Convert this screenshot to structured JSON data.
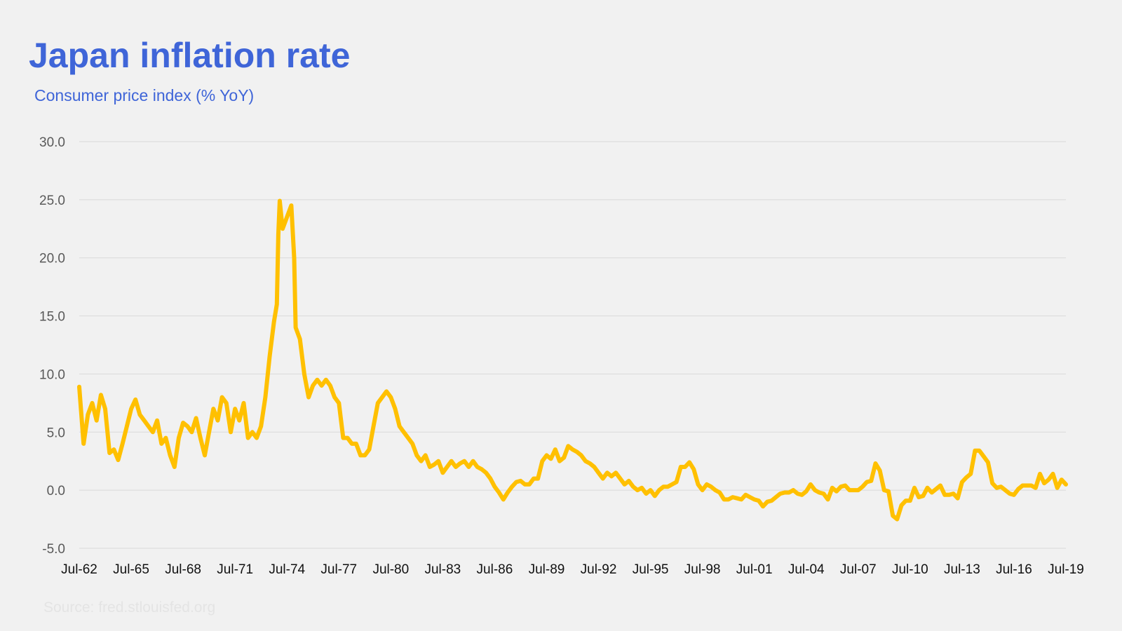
{
  "title": "Japan inflation rate",
  "subtitle": "Consumer price index (% YoY)",
  "source": "Source: fred.stlouisfed.org",
  "colors": {
    "title": "#3f65d8",
    "line": "#ffc000",
    "grid": "#d9d9d9",
    "background": "#f1f1f1"
  },
  "chart_data": {
    "type": "line",
    "title": "Japan inflation rate",
    "subtitle": "Consumer price index (% YoY)",
    "ylabel": "",
    "xlabel": "",
    "ylim": [
      -5,
      30
    ],
    "y_ticks": [
      "-5.0",
      "0.0",
      "5.0",
      "10.0",
      "15.0",
      "20.0",
      "25.0",
      "30.0"
    ],
    "x_ticks": [
      "Jul-62",
      "Jul-65",
      "Jul-68",
      "Jul-71",
      "Jul-74",
      "Jul-77",
      "Jul-80",
      "Jul-83",
      "Jul-86",
      "Jul-89",
      "Jul-92",
      "Jul-95",
      "Jul-98",
      "Jul-01",
      "Jul-04",
      "Jul-07",
      "Jul-10",
      "Jul-13",
      "Jul-16",
      "Jul-19"
    ],
    "grid": true,
    "legend": "none",
    "series": [
      {
        "color": "#ffc000",
        "points": [
          [
            "1962-07",
            8.9
          ],
          [
            "1962-10",
            4.0
          ],
          [
            "1963-01",
            6.5
          ],
          [
            "1963-04",
            7.5
          ],
          [
            "1963-07",
            6.0
          ],
          [
            "1963-10",
            8.2
          ],
          [
            "1964-01",
            7.0
          ],
          [
            "1964-04",
            3.2
          ],
          [
            "1964-07",
            3.5
          ],
          [
            "1964-10",
            2.6
          ],
          [
            "1965-01",
            4.0
          ],
          [
            "1965-04",
            5.5
          ],
          [
            "1965-07",
            7.0
          ],
          [
            "1965-10",
            7.8
          ],
          [
            "1966-01",
            6.5
          ],
          [
            "1966-04",
            6.0
          ],
          [
            "1966-07",
            5.5
          ],
          [
            "1966-10",
            5.0
          ],
          [
            "1967-01",
            6.0
          ],
          [
            "1967-04",
            4.0
          ],
          [
            "1967-07",
            4.5
          ],
          [
            "1967-10",
            3.0
          ],
          [
            "1968-01",
            2.0
          ],
          [
            "1968-04",
            4.5
          ],
          [
            "1968-07",
            5.8
          ],
          [
            "1968-10",
            5.5
          ],
          [
            "1969-01",
            5.0
          ],
          [
            "1969-04",
            6.2
          ],
          [
            "1969-07",
            4.5
          ],
          [
            "1969-10",
            3.0
          ],
          [
            "1970-01",
            5.0
          ],
          [
            "1970-04",
            7.0
          ],
          [
            "1970-07",
            6.0
          ],
          [
            "1970-10",
            8.0
          ],
          [
            "1971-01",
            7.5
          ],
          [
            "1971-04",
            5.0
          ],
          [
            "1971-07",
            7.0
          ],
          [
            "1971-10",
            6.0
          ],
          [
            "1972-01",
            7.5
          ],
          [
            "1972-04",
            4.5
          ],
          [
            "1972-07",
            5.0
          ],
          [
            "1972-10",
            4.5
          ],
          [
            "1973-01",
            5.5
          ],
          [
            "1973-04",
            8.0
          ],
          [
            "1973-07",
            11.5
          ],
          [
            "1973-10",
            14.5
          ],
          [
            "1973-12",
            16.0
          ],
          [
            "1974-01",
            22.0
          ],
          [
            "1974-02",
            24.9
          ],
          [
            "1974-04",
            22.5
          ],
          [
            "1974-07",
            23.5
          ],
          [
            "1974-10",
            24.5
          ],
          [
            "1974-12",
            20.0
          ],
          [
            "1975-01",
            14.0
          ],
          [
            "1975-04",
            13.0
          ],
          [
            "1975-07",
            10.0
          ],
          [
            "1975-10",
            8.0
          ],
          [
            "1976-01",
            9.0
          ],
          [
            "1976-04",
            9.5
          ],
          [
            "1976-07",
            9.0
          ],
          [
            "1976-10",
            9.5
          ],
          [
            "1977-01",
            9.0
          ],
          [
            "1977-04",
            8.0
          ],
          [
            "1977-07",
            7.5
          ],
          [
            "1977-10",
            4.5
          ],
          [
            "1978-01",
            4.5
          ],
          [
            "1978-04",
            4.0
          ],
          [
            "1978-07",
            4.0
          ],
          [
            "1978-10",
            3.0
          ],
          [
            "1979-01",
            3.0
          ],
          [
            "1979-04",
            3.5
          ],
          [
            "1979-07",
            5.5
          ],
          [
            "1979-10",
            7.5
          ],
          [
            "1980-01",
            8.0
          ],
          [
            "1980-04",
            8.5
          ],
          [
            "1980-07",
            8.0
          ],
          [
            "1980-10",
            7.0
          ],
          [
            "1981-01",
            5.5
          ],
          [
            "1981-04",
            5.0
          ],
          [
            "1981-07",
            4.5
          ],
          [
            "1981-10",
            4.0
          ],
          [
            "1982-01",
            3.0
          ],
          [
            "1982-04",
            2.5
          ],
          [
            "1982-07",
            3.0
          ],
          [
            "1982-10",
            2.0
          ],
          [
            "1983-01",
            2.2
          ],
          [
            "1983-04",
            2.5
          ],
          [
            "1983-07",
            1.5
          ],
          [
            "1983-10",
            2.0
          ],
          [
            "1984-01",
            2.5
          ],
          [
            "1984-04",
            2.0
          ],
          [
            "1984-07",
            2.3
          ],
          [
            "1984-10",
            2.5
          ],
          [
            "1985-01",
            2.0
          ],
          [
            "1985-04",
            2.5
          ],
          [
            "1985-07",
            2.0
          ],
          [
            "1985-10",
            1.8
          ],
          [
            "1986-01",
            1.5
          ],
          [
            "1986-04",
            1.0
          ],
          [
            "1986-07",
            0.3
          ],
          [
            "1986-10",
            -0.2
          ],
          [
            "1987-01",
            -0.8
          ],
          [
            "1987-04",
            -0.2
          ],
          [
            "1987-07",
            0.3
          ],
          [
            "1987-10",
            0.7
          ],
          [
            "1988-01",
            0.8
          ],
          [
            "1988-04",
            0.5
          ],
          [
            "1988-07",
            0.5
          ],
          [
            "1988-10",
            1.0
          ],
          [
            "1989-01",
            1.0
          ],
          [
            "1989-04",
            2.5
          ],
          [
            "1989-07",
            3.0
          ],
          [
            "1989-10",
            2.7
          ],
          [
            "1990-01",
            3.5
          ],
          [
            "1990-04",
            2.5
          ],
          [
            "1990-07",
            2.8
          ],
          [
            "1990-10",
            3.8
          ],
          [
            "1991-01",
            3.5
          ],
          [
            "1991-04",
            3.3
          ],
          [
            "1991-07",
            3.0
          ],
          [
            "1991-10",
            2.5
          ],
          [
            "1992-01",
            2.3
          ],
          [
            "1992-04",
            2.0
          ],
          [
            "1992-07",
            1.5
          ],
          [
            "1992-10",
            1.0
          ],
          [
            "1993-01",
            1.5
          ],
          [
            "1993-04",
            1.2
          ],
          [
            "1993-07",
            1.5
          ],
          [
            "1993-10",
            1.0
          ],
          [
            "1994-01",
            0.5
          ],
          [
            "1994-04",
            0.8
          ],
          [
            "1994-07",
            0.3
          ],
          [
            "1994-10",
            0.0
          ],
          [
            "1995-01",
            0.2
          ],
          [
            "1995-04",
            -0.3
          ],
          [
            "1995-07",
            0.0
          ],
          [
            "1995-10",
            -0.5
          ],
          [
            "1996-01",
            0.0
          ],
          [
            "1996-04",
            0.3
          ],
          [
            "1996-07",
            0.3
          ],
          [
            "1996-10",
            0.5
          ],
          [
            "1997-01",
            0.7
          ],
          [
            "1997-04",
            2.0
          ],
          [
            "1997-07",
            2.0
          ],
          [
            "1997-10",
            2.4
          ],
          [
            "1998-01",
            1.8
          ],
          [
            "1998-04",
            0.5
          ],
          [
            "1998-07",
            0.0
          ],
          [
            "1998-10",
            0.5
          ],
          [
            "1999-01",
            0.3
          ],
          [
            "1999-04",
            0.0
          ],
          [
            "1999-07",
            -0.2
          ],
          [
            "1999-10",
            -0.8
          ],
          [
            "2000-01",
            -0.8
          ],
          [
            "2000-04",
            -0.6
          ],
          [
            "2000-07",
            -0.7
          ],
          [
            "2000-10",
            -0.8
          ],
          [
            "2001-01",
            -0.4
          ],
          [
            "2001-04",
            -0.6
          ],
          [
            "2001-07",
            -0.8
          ],
          [
            "2001-10",
            -0.9
          ],
          [
            "2002-01",
            -1.4
          ],
          [
            "2002-04",
            -1.0
          ],
          [
            "2002-07",
            -0.9
          ],
          [
            "2002-10",
            -0.6
          ],
          [
            "2003-01",
            -0.3
          ],
          [
            "2003-04",
            -0.2
          ],
          [
            "2003-07",
            -0.2
          ],
          [
            "2003-10",
            0.0
          ],
          [
            "2004-01",
            -0.3
          ],
          [
            "2004-04",
            -0.4
          ],
          [
            "2004-07",
            -0.1
          ],
          [
            "2004-10",
            0.5
          ],
          [
            "2005-01",
            0.0
          ],
          [
            "2005-04",
            -0.2
          ],
          [
            "2005-07",
            -0.3
          ],
          [
            "2005-10",
            -0.8
          ],
          [
            "2006-01",
            0.2
          ],
          [
            "2006-04",
            -0.1
          ],
          [
            "2006-07",
            0.3
          ],
          [
            "2006-10",
            0.4
          ],
          [
            "2007-01",
            0.0
          ],
          [
            "2007-04",
            0.0
          ],
          [
            "2007-07",
            0.0
          ],
          [
            "2007-10",
            0.3
          ],
          [
            "2008-01",
            0.7
          ],
          [
            "2008-04",
            0.8
          ],
          [
            "2008-07",
            2.3
          ],
          [
            "2008-10",
            1.7
          ],
          [
            "2009-01",
            0.0
          ],
          [
            "2009-04",
            -0.1
          ],
          [
            "2009-07",
            -2.2
          ],
          [
            "2009-10",
            -2.5
          ],
          [
            "2010-01",
            -1.3
          ],
          [
            "2010-04",
            -0.9
          ],
          [
            "2010-07",
            -0.9
          ],
          [
            "2010-10",
            0.2
          ],
          [
            "2011-01",
            -0.6
          ],
          [
            "2011-04",
            -0.5
          ],
          [
            "2011-07",
            0.2
          ],
          [
            "2011-10",
            -0.2
          ],
          [
            "2012-01",
            0.1
          ],
          [
            "2012-04",
            0.4
          ],
          [
            "2012-07",
            -0.4
          ],
          [
            "2012-10",
            -0.4
          ],
          [
            "2013-01",
            -0.3
          ],
          [
            "2013-04",
            -0.7
          ],
          [
            "2013-07",
            0.7
          ],
          [
            "2013-10",
            1.1
          ],
          [
            "2014-01",
            1.4
          ],
          [
            "2014-04",
            3.4
          ],
          [
            "2014-07",
            3.4
          ],
          [
            "2014-10",
            2.9
          ],
          [
            "2015-01",
            2.4
          ],
          [
            "2015-04",
            0.6
          ],
          [
            "2015-07",
            0.2
          ],
          [
            "2015-10",
            0.3
          ],
          [
            "2016-01",
            0.0
          ],
          [
            "2016-04",
            -0.3
          ],
          [
            "2016-07",
            -0.4
          ],
          [
            "2016-10",
            0.1
          ],
          [
            "2017-01",
            0.4
          ],
          [
            "2017-04",
            0.4
          ],
          [
            "2017-07",
            0.4
          ],
          [
            "2017-10",
            0.2
          ],
          [
            "2018-01",
            1.4
          ],
          [
            "2018-04",
            0.6
          ],
          [
            "2018-07",
            0.9
          ],
          [
            "2018-10",
            1.4
          ],
          [
            "2019-01",
            0.2
          ],
          [
            "2019-04",
            0.9
          ],
          [
            "2019-07",
            0.5
          ]
        ]
      }
    ]
  }
}
